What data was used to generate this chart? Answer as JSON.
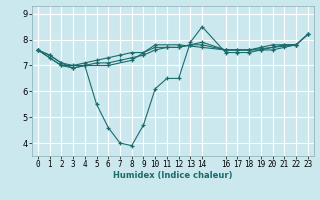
{
  "xlabel": "Humidex (Indice chaleur)",
  "bg_color": "#cce8ef",
  "grid_color": "#ffffff",
  "line_color": "#1a6b6b",
  "xlim": [
    -0.5,
    23.5
  ],
  "ylim": [
    3.5,
    9.3
  ],
  "xticks": [
    0,
    1,
    2,
    3,
    4,
    5,
    6,
    7,
    8,
    9,
    10,
    11,
    12,
    13,
    14,
    16,
    17,
    18,
    19,
    20,
    21,
    22,
    23
  ],
  "yticks": [
    4,
    5,
    6,
    7,
    8,
    9
  ],
  "series": [
    {
      "x": [
        0,
        1,
        2,
        3,
        4,
        5,
        6,
        7,
        8,
        9,
        10,
        11,
        12,
        13,
        14,
        16,
        17,
        18,
        19,
        20,
        21,
        22,
        23
      ],
      "y": [
        7.6,
        7.4,
        7.1,
        6.9,
        7.0,
        7.1,
        7.1,
        7.2,
        7.3,
        7.4,
        7.6,
        7.7,
        7.7,
        7.8,
        7.9,
        7.6,
        7.6,
        7.6,
        7.6,
        7.7,
        7.8,
        7.8,
        8.2
      ]
    },
    {
      "x": [
        0,
        1,
        2,
        3,
        4,
        5,
        6,
        7,
        8,
        9,
        10,
        11,
        12,
        13,
        14,
        16,
        17,
        18,
        19,
        20,
        21,
        22,
        23
      ],
      "y": [
        7.6,
        7.4,
        7.1,
        7.0,
        7.1,
        7.2,
        7.3,
        7.4,
        7.5,
        7.5,
        7.7,
        7.7,
        7.7,
        7.8,
        7.8,
        7.6,
        7.6,
        7.6,
        7.7,
        7.8,
        7.8,
        7.8,
        8.2
      ]
    },
    {
      "x": [
        0,
        1,
        2,
        3,
        4,
        5,
        6,
        7,
        8,
        9,
        10,
        11,
        12,
        13,
        14,
        16,
        17,
        18,
        19,
        20,
        21,
        22,
        23
      ],
      "y": [
        7.6,
        7.3,
        7.0,
        6.9,
        7.0,
        5.5,
        4.6,
        4.0,
        3.9,
        4.7,
        6.1,
        6.5,
        6.5,
        7.9,
        8.5,
        7.5,
        7.5,
        7.5,
        7.6,
        7.6,
        7.7,
        7.8,
        8.2
      ]
    },
    {
      "x": [
        0,
        2,
        4,
        6,
        8,
        10,
        12,
        14,
        16,
        18,
        20,
        22
      ],
      "y": [
        7.6,
        7.0,
        7.0,
        7.0,
        7.2,
        7.8,
        7.8,
        7.7,
        7.6,
        7.6,
        7.7,
        7.8
      ]
    }
  ]
}
